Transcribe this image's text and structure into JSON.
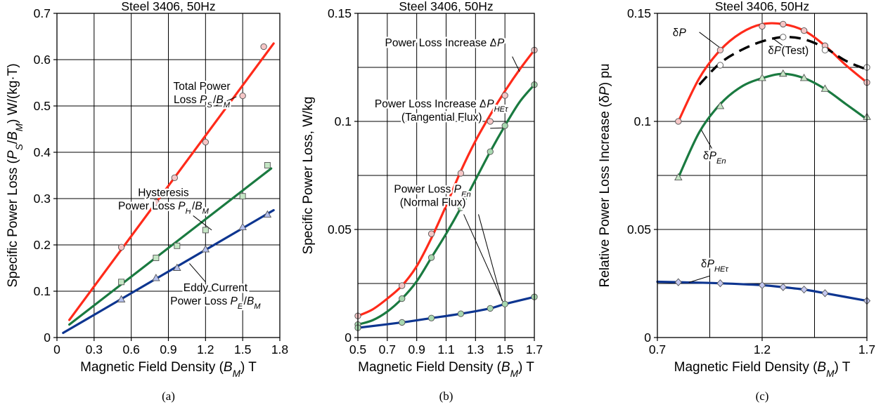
{
  "chart_data": [
    {
      "id": "a",
      "type": "line",
      "title": "Steel 3406, 50Hz",
      "caption": "(a)",
      "xlabel": {
        "pre": "Magnetic Field Density (",
        "sym": "B",
        "sub": "M",
        "post": ") T"
      },
      "ylabel": {
        "pre": "Specific Power Loss (",
        "sym1": "P",
        "sub1": "S",
        "mid": "/",
        "sym2": "B",
        "sub2": "M",
        "post": ") W/(kg·T)"
      },
      "xlim": [
        0,
        1.8
      ],
      "ylim": [
        0,
        0.7
      ],
      "xticks": [
        0,
        0.3,
        0.6,
        0.9,
        1.2,
        1.5,
        1.8
      ],
      "xtick_labels": [
        "0",
        "0.3",
        "0.6",
        "0.9",
        "1.2",
        "1.5",
        "1.8"
      ],
      "yticks": [
        0,
        0.1,
        0.2,
        0.3,
        0.4,
        0.5,
        0.6,
        0.7
      ],
      "ytick_labels": [
        "0",
        "0.1",
        "0.2",
        "0.3",
        "0.4",
        "0.5",
        "0.6",
        "0.7"
      ],
      "grid": true,
      "series": [
        {
          "key": "total",
          "color": "#ff2a1a",
          "marker": "circle",
          "marker_fill": "#f5c6c6",
          "line": [
            [
              0.1,
              0.038
            ],
            [
              1.75,
              0.635
            ]
          ],
          "points": [
            [
              0.52,
              0.195
            ],
            [
              0.8,
              0.292
            ],
            [
              0.95,
              0.345
            ],
            [
              1.2,
              0.422
            ],
            [
              1.5,
              0.522
            ],
            [
              1.67,
              0.628
            ]
          ]
        },
        {
          "key": "hysteresis",
          "color": "#1a7a40",
          "marker": "square",
          "marker_fill": "#c5e6c5",
          "line": [
            [
              0.1,
              0.028
            ],
            [
              1.73,
              0.365
            ]
          ],
          "points": [
            [
              0.52,
              0.12
            ],
            [
              0.8,
              0.172
            ],
            [
              0.97,
              0.198
            ],
            [
              1.2,
              0.232
            ],
            [
              1.5,
              0.305
            ],
            [
              1.7,
              0.372
            ]
          ]
        },
        {
          "key": "eddy",
          "color": "#0d3590",
          "marker": "triangle",
          "marker_fill": "#b4c0ee",
          "line": [
            [
              0.05,
              0.01
            ],
            [
              1.75,
              0.275
            ]
          ],
          "points": [
            [
              0.52,
              0.082
            ],
            [
              0.8,
              0.128
            ],
            [
              0.97,
              0.15
            ],
            [
              1.2,
              0.19
            ],
            [
              1.5,
              0.238
            ],
            [
              1.7,
              0.265
            ]
          ]
        }
      ],
      "annotations": [
        {
          "lines": [
            {
              "t": "Total Power"
            },
            {
              "t": "Loss ",
              "sym": "P",
              "sub": "S",
              "rest": "/",
              "sym2": "B",
              "sub2": "M"
            }
          ],
          "at": [
            1.17,
            0.535
          ],
          "pointer": [
            [
              1.28,
              0.5
            ],
            [
              1.45,
              0.52
            ]
          ]
        },
        {
          "lines": [
            {
              "t": "Hysteresis"
            },
            {
              "t": "Power Loss ",
              "sym": "P",
              "sub": "H",
              "rest": "/",
              "sym2": "B",
              "sub2": "M"
            }
          ],
          "at": [
            0.86,
            0.305
          ],
          "pointer": [
            [
              1.1,
              0.263
            ],
            [
              1.25,
              0.232
            ]
          ]
        },
        {
          "lines": [
            {
              "t": "Eddy Current"
            },
            {
              "t": "Power Loss ",
              "sym": "P",
              "sub": "E",
              "rest": "/",
              "sym2": "B",
              "sub2": "M"
            }
          ],
          "at": [
            1.28,
            0.1
          ],
          "pointer": [
            [
              1.2,
              0.12
            ],
            [
              1.07,
              0.16
            ]
          ]
        }
      ]
    },
    {
      "id": "b",
      "type": "line",
      "title": "Steel 3406, 50Hz",
      "caption": "(b)",
      "xlabel": {
        "pre": "Magnetic Field Density (",
        "sym": "B",
        "sub": "M",
        "post": ") T"
      },
      "ylabel": {
        "pre": "Specific Power Loss, W/kg"
      },
      "xlim": [
        0.5,
        1.7
      ],
      "ylim": [
        0,
        0.15
      ],
      "xticks": [
        0.5,
        0.7,
        0.9,
        1.1,
        1.3,
        1.5,
        1.7
      ],
      "xtick_labels": [
        "0.5",
        "0.7",
        "0.9",
        "1.1",
        "1.3",
        "1.5",
        "1.7"
      ],
      "yticks": [
        0,
        0.05,
        0.1,
        0.15
      ],
      "ytick_labels": [
        "0",
        "0.05",
        "0.1",
        "0.15"
      ],
      "y_gridlines": [
        0.025,
        0.05,
        0.075,
        0.1,
        0.125
      ],
      "grid": true,
      "series": [
        {
          "key": "dP",
          "color": "#ff2a1a",
          "marker": "circle",
          "marker_fill": "#f5c6c6",
          "line": [
            [
              0.5,
              0.01
            ],
            [
              0.6,
              0.013
            ],
            [
              0.7,
              0.018
            ],
            [
              0.8,
              0.024
            ],
            [
              0.9,
              0.033
            ],
            [
              1.0,
              0.046
            ],
            [
              1.1,
              0.061
            ],
            [
              1.2,
              0.077
            ],
            [
              1.3,
              0.091
            ],
            [
              1.4,
              0.103
            ],
            [
              1.5,
              0.114
            ],
            [
              1.6,
              0.124
            ],
            [
              1.7,
              0.133
            ]
          ],
          "points": [
            [
              0.5,
              0.01
            ],
            [
              0.8,
              0.024
            ],
            [
              1.0,
              0.048
            ],
            [
              1.2,
              0.076
            ],
            [
              1.4,
              0.1
            ],
            [
              1.5,
              0.112
            ],
            [
              1.7,
              0.133
            ]
          ]
        },
        {
          "key": "dPHEt",
          "color": "#1a7a40",
          "marker": "circle",
          "marker_fill": "#a8d8b0",
          "line": [
            [
              0.5,
              0.006
            ],
            [
              0.6,
              0.008
            ],
            [
              0.7,
              0.012
            ],
            [
              0.8,
              0.018
            ],
            [
              0.9,
              0.026
            ],
            [
              1.0,
              0.037
            ],
            [
              1.1,
              0.048
            ],
            [
              1.2,
              0.06
            ],
            [
              1.3,
              0.073
            ],
            [
              1.4,
              0.086
            ],
            [
              1.5,
              0.098
            ],
            [
              1.6,
              0.109
            ],
            [
              1.7,
              0.117
            ]
          ],
          "points": [
            [
              0.5,
              0.006
            ],
            [
              0.8,
              0.018
            ],
            [
              1.0,
              0.037
            ],
            [
              1.2,
              0.06
            ],
            [
              1.4,
              0.086
            ],
            [
              1.5,
              0.098
            ],
            [
              1.7,
              0.117
            ]
          ]
        },
        {
          "key": "PEn",
          "color": "#0d3590",
          "marker": "circle",
          "marker_fill": "#a8d8b0",
          "line": [
            [
              0.5,
              0.0045
            ],
            [
              0.8,
              0.007
            ],
            [
              1.0,
              0.009
            ],
            [
              1.2,
              0.011
            ],
            [
              1.4,
              0.0135
            ],
            [
              1.5,
              0.0155
            ],
            [
              1.7,
              0.0188
            ]
          ],
          "points": [
            [
              0.5,
              0.0045
            ],
            [
              0.8,
              0.007
            ],
            [
              1.0,
              0.009
            ],
            [
              1.2,
              0.011
            ],
            [
              1.4,
              0.0135
            ],
            [
              1.5,
              0.0155
            ],
            [
              1.7,
              0.0188
            ]
          ]
        }
      ],
      "annotations": [
        {
          "lines": [
            {
              "t": "Power Loss Increase Δ",
              "sym": "P"
            }
          ],
          "at": [
            1.09,
            0.1348
          ],
          "pointer": [
            [
              1.55,
              0.13
            ],
            [
              1.6,
              0.123
            ]
          ]
        },
        {
          "lines": [
            {
              "t": "Power Loss Increase Δ",
              "sym": "P",
              "sub": "HEτ"
            },
            {
              "t": "(Tangential Flux)"
            }
          ],
          "at": [
            1.07,
            0.1065
          ],
          "pointer": [
            [
              1.4,
              0.0968
            ],
            [
              1.49,
              0.097
            ]
          ]
        },
        {
          "lines": [
            {
              "t": "Power Loss ",
              "sym": "P",
              "sub": "En"
            },
            {
              "t": "(Normal Flux)"
            }
          ],
          "at": [
            1.01,
            0.067
          ],
          "pointer": [
            [
              1.22,
              0.057
            ],
            [
              1.49,
              0.016
            ]
          ]
        }
      ],
      "extra_pointers": [
        [
          [
            1.32,
            0.057
          ],
          [
            1.48,
            0.017
          ]
        ]
      ]
    },
    {
      "id": "c",
      "type": "line",
      "title": "Steel 3406, 50Hz",
      "caption": "(c)",
      "xlabel": {
        "pre": "Magnetic Field Density (",
        "sym": "B",
        "sub": "M",
        "post": ") T"
      },
      "ylabel": {
        "pre": "Relative Power Loss Increase (δ",
        "sym": "P",
        "post": ") pu"
      },
      "xlim": [
        0.7,
        1.7
      ],
      "ylim": [
        0,
        0.15
      ],
      "xticks": [
        0.7,
        1.2,
        1.7
      ],
      "xtick_labels": [
        "0.7",
        "1.2",
        "1.7"
      ],
      "x_gridlines": [
        0.95,
        1.2,
        1.45
      ],
      "yticks": [
        0,
        0.05,
        0.1,
        0.15
      ],
      "ytick_labels": [
        "0",
        "0.05",
        "0.1",
        "0.15"
      ],
      "y_gridlines": [
        0.025,
        0.05,
        0.075,
        0.1,
        0.125
      ],
      "grid": true,
      "series": [
        {
          "key": "dP",
          "color": "#ff2a1a",
          "marker": "circle",
          "marker_fill": "#f5c6c6",
          "line": [
            [
              0.8,
              0.1
            ],
            [
              0.9,
              0.12
            ],
            [
              1.0,
              0.133
            ],
            [
              1.1,
              0.141
            ],
            [
              1.2,
              0.145
            ],
            [
              1.3,
              0.145
            ],
            [
              1.4,
              0.142
            ],
            [
              1.5,
              0.135
            ],
            [
              1.6,
              0.126
            ],
            [
              1.7,
              0.118
            ]
          ],
          "points": [
            [
              0.8,
              0.1
            ],
            [
              1.0,
              0.133
            ],
            [
              1.2,
              0.144
            ],
            [
              1.3,
              0.145
            ],
            [
              1.4,
              0.142
            ],
            [
              1.5,
              0.135
            ],
            [
              1.7,
              0.118
            ]
          ]
        },
        {
          "key": "dPtest",
          "color": "#000000",
          "dashed": true,
          "marker": "circle",
          "marker_fill": "#ffffff",
          "line": [
            [
              0.9,
              0.117
            ],
            [
              1.0,
              0.127
            ],
            [
              1.1,
              0.133
            ],
            [
              1.2,
              0.137
            ],
            [
              1.3,
              0.139
            ],
            [
              1.4,
              0.138
            ],
            [
              1.5,
              0.134
            ],
            [
              1.6,
              0.128
            ],
            [
              1.7,
              0.124
            ]
          ],
          "points": [
            [
              1.0,
              0.126
            ],
            [
              1.3,
              0.139
            ],
            [
              1.5,
              0.133
            ],
            [
              1.7,
              0.125
            ]
          ]
        },
        {
          "key": "dPEn",
          "color": "#1a7a40",
          "marker": "triangle",
          "marker_fill": "#c5e6c5",
          "line": [
            [
              0.8,
              0.074
            ],
            [
              0.9,
              0.095
            ],
            [
              1.0,
              0.108
            ],
            [
              1.1,
              0.116
            ],
            [
              1.2,
              0.12
            ],
            [
              1.3,
              0.122
            ],
            [
              1.4,
              0.12
            ],
            [
              1.5,
              0.115
            ],
            [
              1.6,
              0.108
            ],
            [
              1.7,
              0.101
            ]
          ],
          "points": [
            [
              0.8,
              0.074
            ],
            [
              1.0,
              0.107
            ],
            [
              1.2,
              0.12
            ],
            [
              1.3,
              0.122
            ],
            [
              1.4,
              0.12
            ],
            [
              1.5,
              0.115
            ],
            [
              1.7,
              0.102
            ]
          ]
        },
        {
          "key": "dPHEt",
          "color": "#0d3590",
          "marker": "diamond",
          "marker_fill": "#c4c8f0",
          "line": [
            [
              0.7,
              0.0258
            ],
            [
              0.8,
              0.0256
            ],
            [
              1.0,
              0.0251
            ],
            [
              1.2,
              0.0242
            ],
            [
              1.3,
              0.0233
            ],
            [
              1.4,
              0.0222
            ],
            [
              1.5,
              0.0205
            ],
            [
              1.7,
              0.017
            ]
          ],
          "points": [
            [
              0.8,
              0.0256
            ],
            [
              1.0,
              0.0251
            ],
            [
              1.2,
              0.0242
            ],
            [
              1.3,
              0.0233
            ],
            [
              1.4,
              0.0222
            ],
            [
              1.5,
              0.0205
            ],
            [
              1.7,
              0.017
            ]
          ]
        }
      ],
      "annotations": [
        {
          "lines": [
            {
              "t": "δ",
              "sym": "P"
            }
          ],
          "at": [
            0.805,
            0.1395
          ],
          "pointer": [
            [
              0.9,
              0.1413
            ],
            [
              1.0,
              0.134
            ]
          ]
        },
        {
          "lines": [
            {
              "t": "δ",
              "sym": "P",
              "rest": "(Test)"
            }
          ],
          "at": [
            1.325,
            0.1312
          ],
          "pointer": [
            [
              1.32,
              0.1335
            ],
            [
              1.25,
              0.1385
            ]
          ]
        },
        {
          "lines": [
            {
              "t": "δ",
              "sym": "P",
              "sub": "En"
            }
          ],
          "at": [
            0.975,
            0.0825
          ],
          "pointer": [
            [
              0.96,
              0.0875
            ],
            [
              0.91,
              0.096
            ]
          ]
        },
        {
          "lines": [
            {
              "t": "δ",
              "sym": "P",
              "sub": "HEτ"
            }
          ],
          "at": [
            0.975,
            0.0325
          ],
          "pointer": [
            [
              0.95,
              0.0285
            ],
            [
              0.85,
              0.0255
            ]
          ]
        }
      ]
    }
  ]
}
